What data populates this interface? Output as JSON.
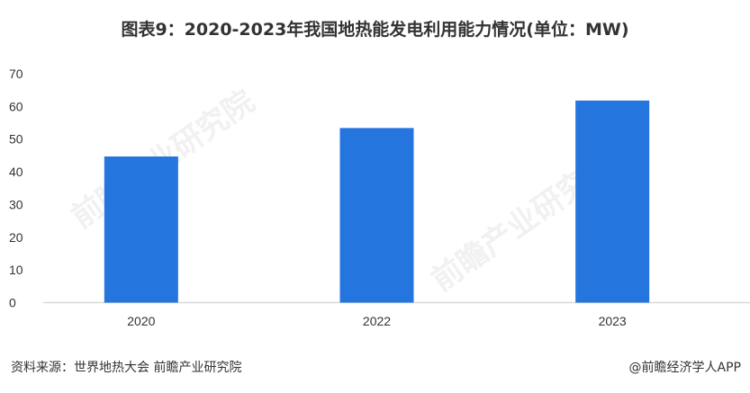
{
  "title": "图表9：2020-2023年我国地热能发电利用能力情况(单位：MW)",
  "source": "资料来源：世界地热大会 前瞻产业研究院",
  "brand": "@前瞻经济学人APP",
  "watermark": "前瞻产业研究院",
  "colors": {
    "bar": "#2575DE",
    "axis": "#D9D9D9",
    "text": "#333333"
  },
  "chart_data": {
    "type": "bar",
    "categories": [
      "2020",
      "2022",
      "2023"
    ],
    "values": [
      44.7,
      53.4,
      61.8
    ],
    "title": "图表9：2020-2023年我国地热能发电利用能力情况(单位：MW)",
    "xlabel": "",
    "ylabel": "",
    "ylim": [
      0,
      70
    ],
    "yticks": [
      "0",
      "10",
      "20",
      "30",
      "40",
      "50",
      "60",
      "70"
    ],
    "grid": false,
    "legend": "none"
  }
}
